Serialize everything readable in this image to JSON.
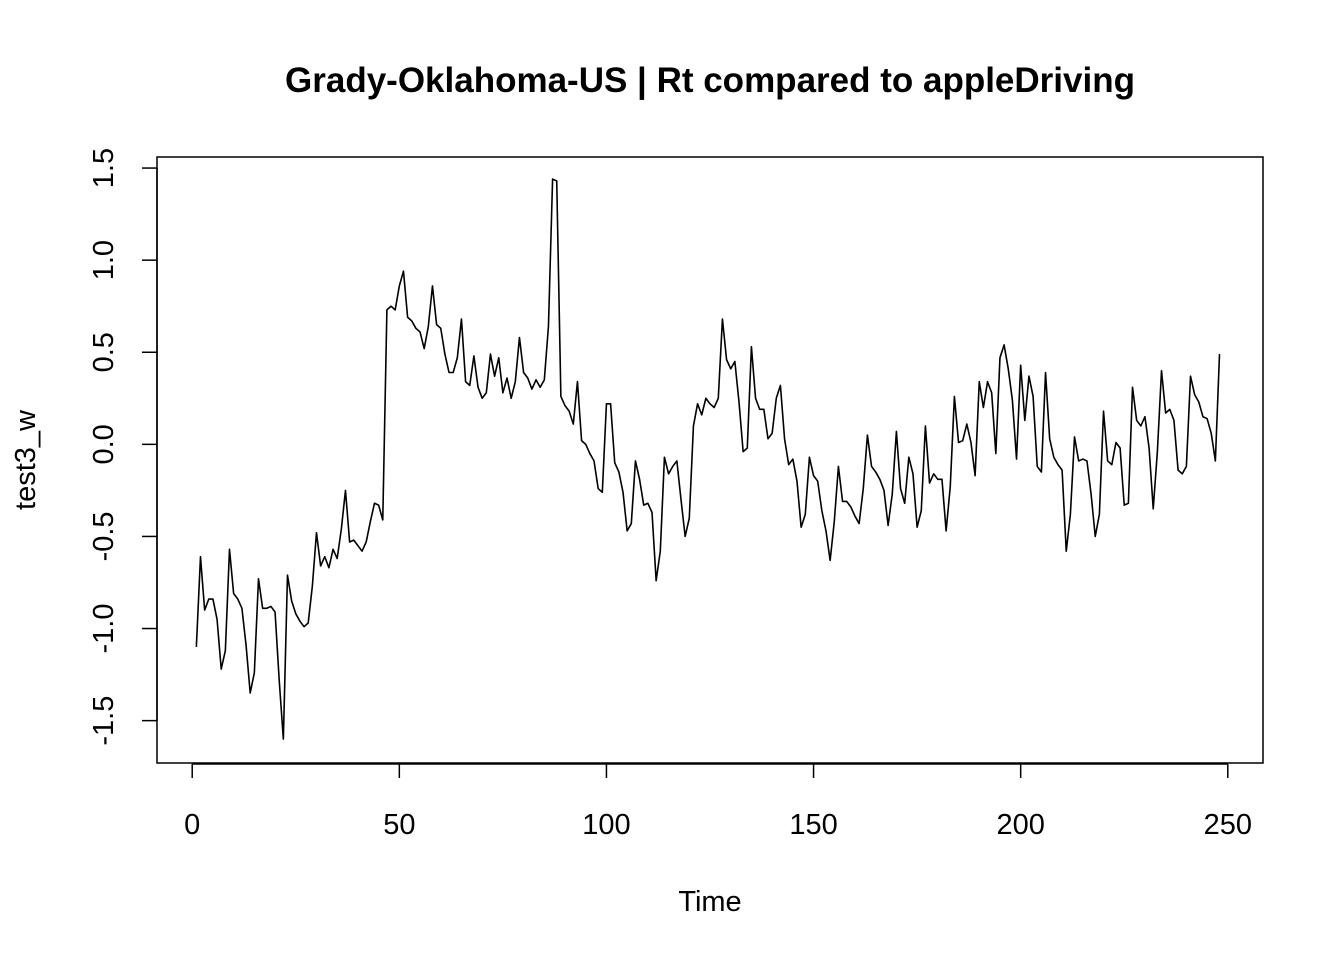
{
  "chart_data": {
    "type": "line",
    "title": "Grady-Oklahoma-US | Rt compared to appleDriving",
    "xlabel": "Time",
    "ylabel": "test3_w",
    "xlim": [
      -8.5,
      258.5
    ],
    "ylim": [
      -1.73,
      1.56
    ],
    "x_ticks": [
      0,
      50,
      100,
      150,
      200,
      250
    ],
    "x_tick_labels": [
      "0",
      "50",
      "100",
      "150",
      "200",
      "250"
    ],
    "y_ticks": [
      -1.5,
      -1.0,
      -0.5,
      0.0,
      0.5,
      1.0,
      1.5
    ],
    "y_tick_labels": [
      "-1.5",
      "-1.0",
      "-0.5",
      "0.0",
      "0.5",
      "1.0",
      "1.5"
    ],
    "grid": false,
    "legend": "none",
    "line_color": "#000000",
    "series": [
      {
        "x_start": 1,
        "x_step": 1,
        "values": [
          -1.1,
          -0.61,
          -0.9,
          -0.84,
          -0.84,
          -0.95,
          -1.22,
          -1.12,
          -0.57,
          -0.81,
          -0.84,
          -0.89,
          -1.09,
          -1.35,
          -1.24,
          -0.73,
          -0.89,
          -0.89,
          -0.88,
          -0.91,
          -1.28,
          -1.6,
          -0.71,
          -0.85,
          -0.92,
          -0.96,
          -0.99,
          -0.97,
          -0.77,
          -0.48,
          -0.66,
          -0.61,
          -0.67,
          -0.57,
          -0.62,
          -0.46,
          -0.25,
          -0.53,
          -0.52,
          -0.55,
          -0.58,
          -0.53,
          -0.42,
          -0.32,
          -0.33,
          -0.41,
          0.73,
          0.75,
          0.73,
          0.86,
          0.94,
          0.69,
          0.67,
          0.63,
          0.61,
          0.52,
          0.64,
          0.86,
          0.65,
          0.63,
          0.49,
          0.39,
          0.39,
          0.47,
          0.68,
          0.34,
          0.32,
          0.48,
          0.31,
          0.25,
          0.28,
          0.49,
          0.37,
          0.47,
          0.28,
          0.36,
          0.25,
          0.34,
          0.58,
          0.39,
          0.36,
          0.3,
          0.35,
          0.31,
          0.35,
          0.64,
          1.44,
          1.43,
          0.26,
          0.21,
          0.18,
          0.11,
          0.34,
          0.02,
          0.0,
          -0.05,
          -0.09,
          -0.24,
          -0.26,
          0.22,
          0.22,
          -0.1,
          -0.15,
          -0.26,
          -0.47,
          -0.43,
          -0.09,
          -0.19,
          -0.33,
          -0.32,
          -0.37,
          -0.74,
          -0.58,
          -0.07,
          -0.16,
          -0.12,
          -0.09,
          -0.3,
          -0.5,
          -0.4,
          0.1,
          0.22,
          0.16,
          0.25,
          0.22,
          0.2,
          0.25,
          0.68,
          0.46,
          0.41,
          0.45,
          0.23,
          -0.04,
          -0.02,
          0.53,
          0.25,
          0.19,
          0.19,
          0.03,
          0.06,
          0.25,
          0.32,
          0.03,
          -0.11,
          -0.08,
          -0.2,
          -0.45,
          -0.38,
          -0.07,
          -0.17,
          -0.2,
          -0.36,
          -0.47,
          -0.63,
          -0.42,
          -0.12,
          -0.31,
          -0.31,
          -0.34,
          -0.39,
          -0.43,
          -0.24,
          0.05,
          -0.12,
          -0.15,
          -0.19,
          -0.25,
          -0.44,
          -0.27,
          0.07,
          -0.24,
          -0.32,
          -0.07,
          -0.16,
          -0.45,
          -0.36,
          0.1,
          -0.21,
          -0.16,
          -0.19,
          -0.19,
          -0.47,
          -0.23,
          0.26,
          0.01,
          0.02,
          0.11,
          0.01,
          -0.17,
          0.34,
          0.2,
          0.34,
          0.28,
          -0.05,
          0.47,
          0.54,
          0.41,
          0.24,
          -0.08,
          0.43,
          0.13,
          0.37,
          0.26,
          -0.12,
          -0.15,
          0.39,
          0.03,
          -0.07,
          -0.11,
          -0.14,
          -0.58,
          -0.38,
          0.04,
          -0.09,
          -0.08,
          -0.09,
          -0.27,
          -0.5,
          -0.38,
          0.18,
          -0.09,
          -0.11,
          0.01,
          -0.02,
          -0.33,
          -0.32,
          0.31,
          0.13,
          0.1,
          0.15,
          -0.02,
          -0.35,
          -0.04,
          0.4,
          0.17,
          0.19,
          0.13,
          -0.14,
          -0.16,
          -0.12,
          0.37,
          0.27,
          0.23,
          0.15,
          0.14,
          0.06,
          -0.09,
          0.49
        ]
      }
    ]
  }
}
